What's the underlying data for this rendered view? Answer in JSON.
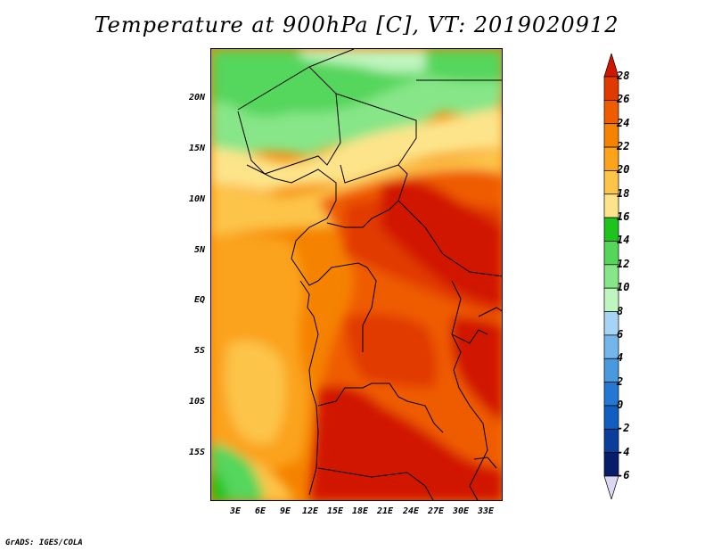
{
  "title": "Temperature at 900hPa [C], VT: 2019020912",
  "credit": "GrADS: IGES/COLA",
  "map": {
    "lat_labels": [
      "20N",
      "15N",
      "10N",
      "5N",
      "EQ",
      "5S",
      "10S",
      "15S"
    ],
    "lon_labels": [
      "3E",
      "6E",
      "9E",
      "12E",
      "15E",
      "18E",
      "21E",
      "24E",
      "27E",
      "30E",
      "33E"
    ]
  },
  "colorbar": {
    "labels": [
      "28",
      "26",
      "24",
      "22",
      "20",
      "18",
      "16",
      "14",
      "12",
      "10",
      "8",
      "6",
      "4",
      "2",
      "0",
      "-2",
      "-4",
      "-6"
    ],
    "colors": [
      "#d11600",
      "#e13a00",
      "#ef5c00",
      "#f58200",
      "#fba31b",
      "#fcc449",
      "#fde48a",
      "#1ec31e",
      "#55d65b",
      "#87e688",
      "#bff5bf",
      "#a7d3f4",
      "#74b5ea",
      "#4a98de",
      "#2278d2",
      "#0f5ec0",
      "#0a3e9a",
      "#081d6a",
      "#dcd8f4"
    ]
  }
}
